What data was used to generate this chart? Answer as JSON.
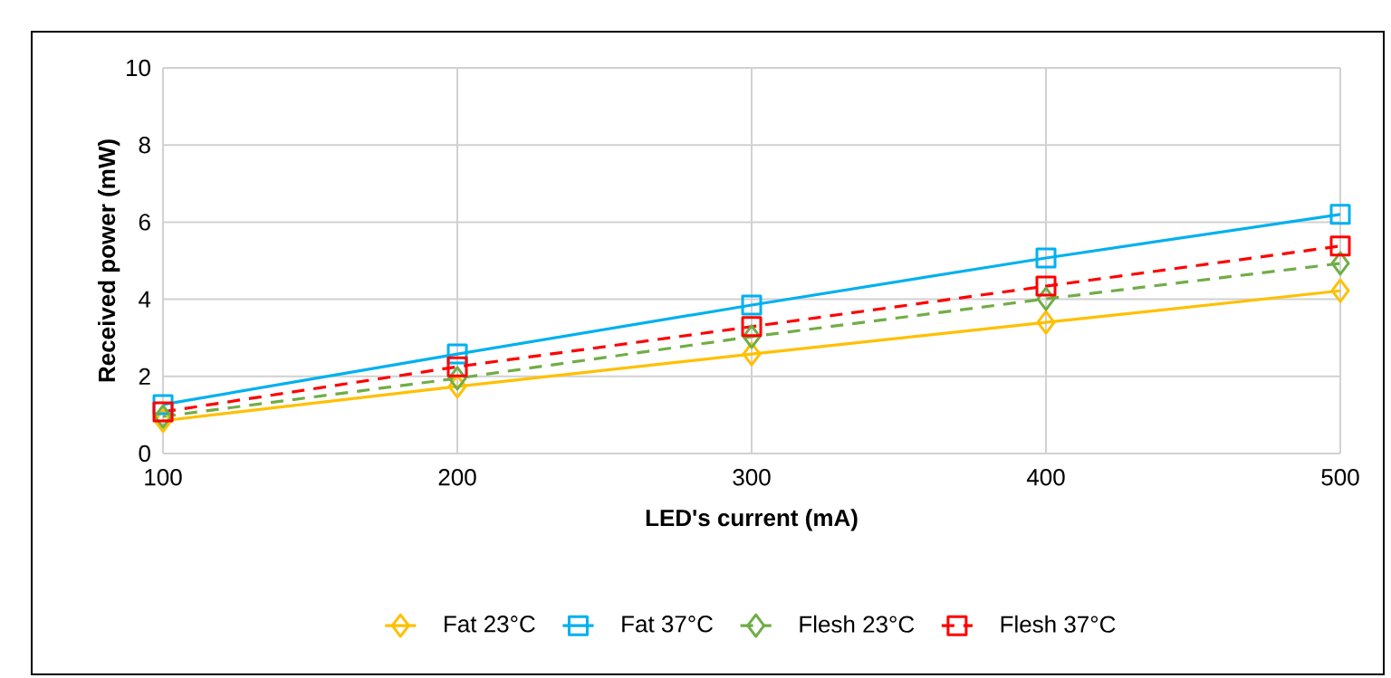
{
  "chart_data": {
    "type": "line",
    "xlabel": "LED's current (mA)",
    "ylabel": "Received power (mW)",
    "x": [
      100,
      200,
      300,
      400,
      500
    ],
    "series": [
      {
        "name": "Fat 23°C",
        "color": "#ffc000",
        "marker": "diamond",
        "line_style": "solid",
        "values": [
          0.85,
          1.74,
          2.58,
          3.4,
          4.22
        ]
      },
      {
        "name": "Fat 37°C",
        "color": "#00b0f0",
        "marker": "square",
        "line_style": "solid",
        "values": [
          1.27,
          2.58,
          3.85,
          5.07,
          6.2
        ]
      },
      {
        "name": "Flesh 23°C",
        "color": "#70ad47",
        "marker": "diamond",
        "line_style": "dashed",
        "values": [
          0.96,
          1.95,
          3.03,
          4.01,
          4.93
        ]
      },
      {
        "name": "Flesh 37°C",
        "color": "#ff0000",
        "marker": "square",
        "line_style": "dashed",
        "values": [
          1.08,
          2.25,
          3.29,
          4.34,
          5.38
        ]
      }
    ],
    "xlim": [
      100,
      500
    ],
    "ylim": [
      0,
      10
    ],
    "xticks": [
      100,
      200,
      300,
      400,
      500
    ],
    "yticks": [
      0,
      2,
      4,
      6,
      8,
      10
    ],
    "grid": true,
    "legend": "bottom"
  }
}
